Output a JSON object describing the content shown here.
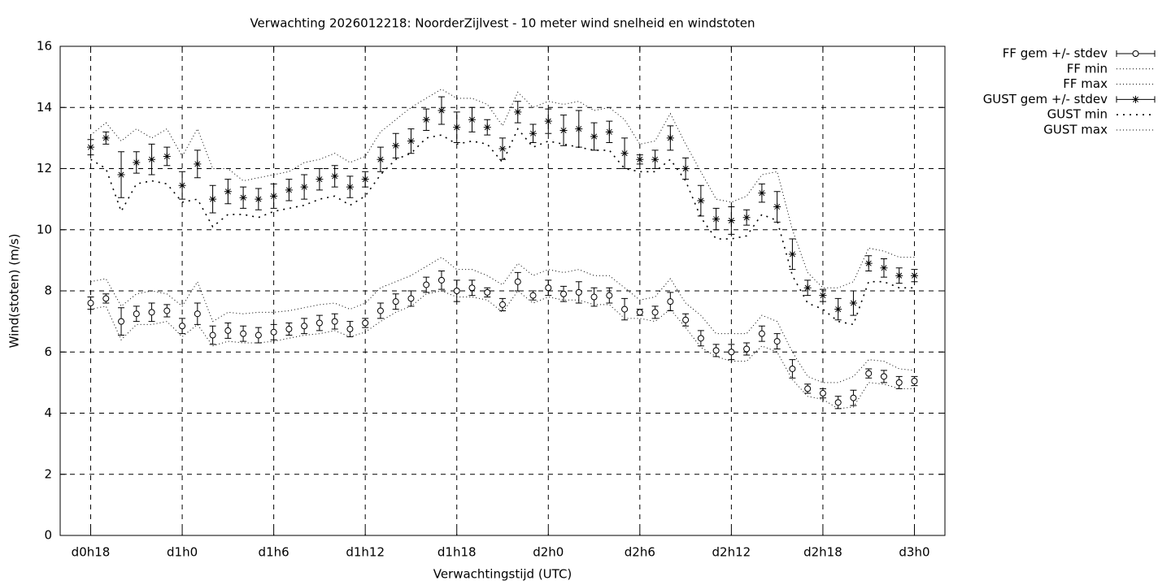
{
  "chart_data": {
    "type": "errorbar-line",
    "title": "Verwachting 2026012218: NoorderZijlvest - 10 meter wind snelheid en windstoten",
    "x_label": "Verwachtingstijd (UTC)",
    "y_label": "Wind(stoten) (m/s)",
    "x": [
      18,
      19,
      20,
      21,
      22,
      23,
      24,
      25,
      26,
      27,
      28,
      29,
      30,
      31,
      32,
      33,
      34,
      35,
      36,
      37,
      38,
      39,
      40,
      41,
      42,
      43,
      44,
      45,
      46,
      47,
      48,
      49,
      50,
      51,
      52,
      53,
      54,
      55,
      56,
      57,
      58,
      59,
      60,
      61,
      62,
      63,
      64,
      65,
      66,
      67,
      68,
      69,
      70,
      71,
      72
    ],
    "xlim": [
      16,
      74
    ],
    "xticks": [
      {
        "value": 18,
        "label": "d0h18"
      },
      {
        "value": 24,
        "label": "d1h0"
      },
      {
        "value": 30,
        "label": "d1h6"
      },
      {
        "value": 36,
        "label": "d1h12"
      },
      {
        "value": 42,
        "label": "d1h18"
      },
      {
        "value": 48,
        "label": "d2h0"
      },
      {
        "value": 54,
        "label": "d2h6"
      },
      {
        "value": 60,
        "label": "d2h12"
      },
      {
        "value": 66,
        "label": "d2h18"
      },
      {
        "value": 72,
        "label": "d3h0"
      }
    ],
    "ylim": [
      0,
      16
    ],
    "yticks": [
      0,
      2,
      4,
      6,
      8,
      10,
      12,
      14,
      16
    ],
    "grid": true,
    "legend": "outside-top-right",
    "series": [
      {
        "name": "FF gem +/- stdev",
        "color": "#000000",
        "style": "errorbars",
        "marker": "circle",
        "values": [
          7.6,
          7.75,
          7.0,
          7.25,
          7.3,
          7.35,
          6.85,
          7.25,
          6.55,
          6.7,
          6.6,
          6.55,
          6.65,
          6.75,
          6.85,
          6.95,
          7.0,
          6.75,
          6.95,
          7.35,
          7.65,
          7.75,
          8.2,
          8.35,
          8.0,
          8.1,
          7.95,
          7.55,
          8.3,
          7.85,
          8.1,
          7.9,
          7.95,
          7.8,
          7.85,
          7.4,
          7.3,
          7.3,
          7.65,
          7.05,
          6.45,
          6.05,
          6.0,
          6.1,
          6.6,
          6.35,
          5.45,
          4.8,
          4.65,
          4.35,
          4.5,
          5.3,
          5.2,
          5.0,
          5.05
        ],
        "errors": [
          0.2,
          0.15,
          0.45,
          0.25,
          0.3,
          0.2,
          0.25,
          0.35,
          0.3,
          0.25,
          0.25,
          0.25,
          0.25,
          0.2,
          0.25,
          0.25,
          0.25,
          0.25,
          0.15,
          0.25,
          0.25,
          0.25,
          0.25,
          0.3,
          0.35,
          0.25,
          0.15,
          0.2,
          0.3,
          0.15,
          0.25,
          0.25,
          0.35,
          0.3,
          0.25,
          0.35,
          0.1,
          0.2,
          0.3,
          0.2,
          0.25,
          0.2,
          0.25,
          0.2,
          0.25,
          0.25,
          0.3,
          0.15,
          0.15,
          0.2,
          0.25,
          0.15,
          0.2,
          0.2,
          0.15
        ]
      },
      {
        "name": "FF min",
        "color": "#000000",
        "style": "fine-dotted",
        "values": [
          7.4,
          7.5,
          6.4,
          6.9,
          6.9,
          7.0,
          6.5,
          6.9,
          6.2,
          6.35,
          6.3,
          6.3,
          6.35,
          6.45,
          6.55,
          6.6,
          6.7,
          6.5,
          6.65,
          7.0,
          7.3,
          7.5,
          7.9,
          8.0,
          7.8,
          7.8,
          7.7,
          7.3,
          8.0,
          7.6,
          7.8,
          7.7,
          7.7,
          7.55,
          7.55,
          7.1,
          7.1,
          7.0,
          7.4,
          6.8,
          6.15,
          5.85,
          5.7,
          5.7,
          6.2,
          6.0,
          5.1,
          4.55,
          4.45,
          4.15,
          4.2,
          5.0,
          4.95,
          4.8,
          4.8
        ]
      },
      {
        "name": "FF max",
        "color": "#000000",
        "style": "fine-dotted",
        "values": [
          8.3,
          8.4,
          7.5,
          7.9,
          8.0,
          7.9,
          7.5,
          8.3,
          7.0,
          7.3,
          7.25,
          7.3,
          7.3,
          7.35,
          7.45,
          7.55,
          7.6,
          7.4,
          7.6,
          8.1,
          8.3,
          8.5,
          8.8,
          9.1,
          8.7,
          8.7,
          8.5,
          8.2,
          8.9,
          8.5,
          8.7,
          8.6,
          8.7,
          8.5,
          8.5,
          8.1,
          7.7,
          7.8,
          8.4,
          7.6,
          7.2,
          6.6,
          6.6,
          6.6,
          7.2,
          7.0,
          6.0,
          5.2,
          5.0,
          5.0,
          5.2,
          5.75,
          5.7,
          5.45,
          5.4
        ]
      },
      {
        "name": "GUST gem +/- stdev",
        "color": "#000000",
        "style": "errorbars",
        "marker": "star",
        "values": [
          12.7,
          13.0,
          11.8,
          12.2,
          12.3,
          12.4,
          11.45,
          12.15,
          11.0,
          11.25,
          11.05,
          11.0,
          11.1,
          11.3,
          11.4,
          11.65,
          11.75,
          11.4,
          11.65,
          12.3,
          12.75,
          12.9,
          13.6,
          13.9,
          13.35,
          13.6,
          13.35,
          12.65,
          13.85,
          13.15,
          13.55,
          13.25,
          13.3,
          13.05,
          13.2,
          12.5,
          12.3,
          12.3,
          13.0,
          12.0,
          10.95,
          10.35,
          10.3,
          10.4,
          11.2,
          10.75,
          9.2,
          8.1,
          7.85,
          7.4,
          7.6,
          8.9,
          8.75,
          8.5,
          8.5
        ],
        "errors": [
          0.25,
          0.2,
          0.75,
          0.35,
          0.5,
          0.3,
          0.45,
          0.45,
          0.45,
          0.4,
          0.35,
          0.35,
          0.4,
          0.35,
          0.4,
          0.35,
          0.35,
          0.35,
          0.25,
          0.4,
          0.4,
          0.4,
          0.35,
          0.45,
          0.5,
          0.4,
          0.25,
          0.35,
          0.35,
          0.3,
          0.4,
          0.5,
          0.6,
          0.45,
          0.35,
          0.5,
          0.15,
          0.3,
          0.4,
          0.35,
          0.5,
          0.35,
          0.45,
          0.25,
          0.3,
          0.5,
          0.5,
          0.25,
          0.2,
          0.35,
          0.4,
          0.25,
          0.3,
          0.25,
          0.2
        ]
      },
      {
        "name": "GUST min",
        "color": "#000000",
        "style": "coarse-dotted",
        "values": [
          12.3,
          12.0,
          10.6,
          11.5,
          11.6,
          11.5,
          10.9,
          11.0,
          10.1,
          10.5,
          10.5,
          10.4,
          10.6,
          10.7,
          10.8,
          11.0,
          11.1,
          10.8,
          11.1,
          11.8,
          12.3,
          12.5,
          13.0,
          13.1,
          12.8,
          12.9,
          12.8,
          12.2,
          13.3,
          12.7,
          12.9,
          12.8,
          12.7,
          12.6,
          12.6,
          12.0,
          11.9,
          11.9,
          12.3,
          11.6,
          10.4,
          9.7,
          9.7,
          9.8,
          10.5,
          10.3,
          8.5,
          7.6,
          7.4,
          7.0,
          6.9,
          8.3,
          8.3,
          8.1,
          8.1
        ]
      },
      {
        "name": "GUST max",
        "color": "#000000",
        "style": "fine-dotted",
        "values": [
          13.1,
          13.5,
          12.9,
          13.3,
          13.0,
          13.3,
          12.4,
          13.3,
          12.0,
          12.0,
          11.6,
          11.7,
          11.8,
          11.9,
          12.2,
          12.3,
          12.5,
          12.2,
          12.4,
          13.2,
          13.6,
          14.0,
          14.3,
          14.6,
          14.3,
          14.3,
          14.1,
          13.4,
          14.5,
          14.0,
          14.2,
          14.1,
          14.2,
          13.9,
          14.0,
          13.6,
          12.8,
          12.9,
          13.8,
          12.8,
          11.9,
          11.0,
          10.9,
          11.1,
          11.8,
          11.9,
          10.0,
          8.6,
          8.1,
          8.1,
          8.3,
          9.4,
          9.3,
          9.1,
          9.1
        ]
      }
    ]
  }
}
